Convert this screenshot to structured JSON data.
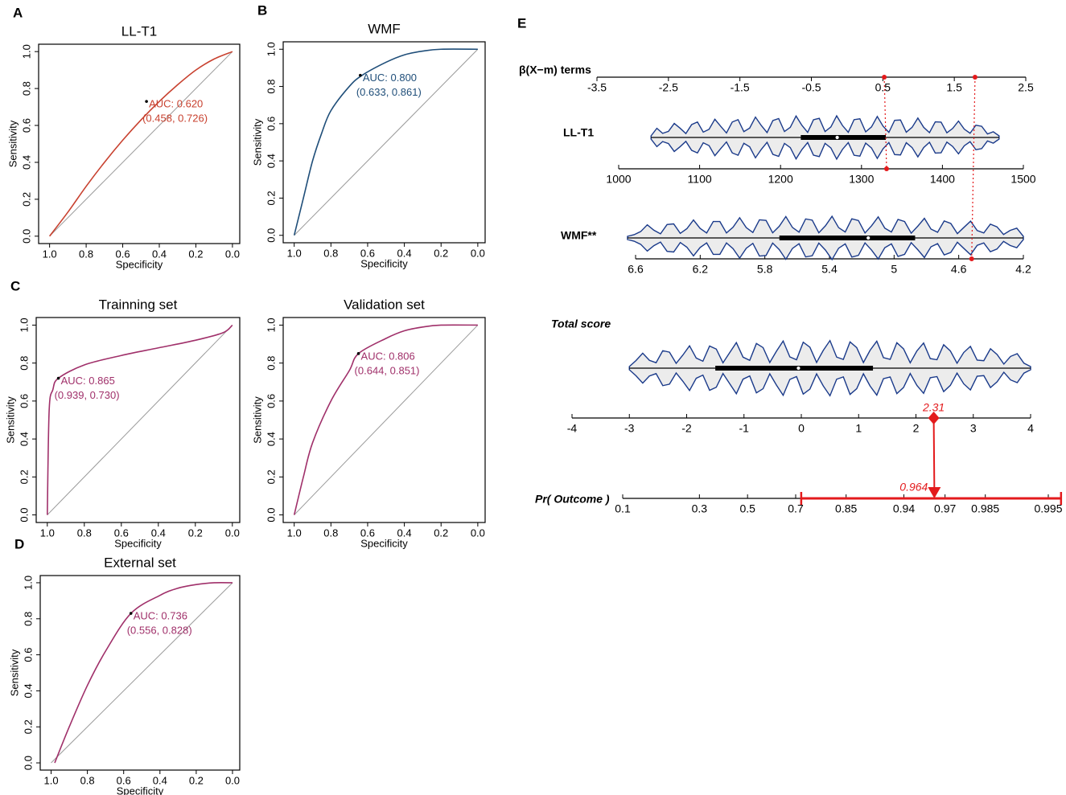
{
  "chart_data": [
    {
      "type": "roc",
      "panel": "A",
      "title": "LL-T1",
      "xlabel": "Specificity",
      "ylabel": "Sensitivity",
      "color": "#c8412f",
      "specificity": [
        1,
        0.9,
        0.8,
        0.7,
        0.6,
        0.5,
        0.4,
        0.3,
        0.2,
        0.1,
        0
      ],
      "sensitivity": [
        0,
        0.13,
        0.27,
        0.4,
        0.52,
        0.63,
        0.73,
        0.82,
        0.9,
        0.96,
        1
      ],
      "point": [
        0.47,
        0.73
      ],
      "auc_text": "AUC: 0.620",
      "ci_text": "(0.458, 0.726)",
      "xlim": [
        1.06,
        -0.04
      ],
      "ylim": [
        -0.04,
        1.04
      ],
      "xticks": [
        {
          "value": 1,
          "label": "1.0"
        },
        0.8,
        0.6,
        0.4,
        0.2,
        {
          "value": 0,
          "label": "0.0"
        }
      ],
      "yticks": [
        {
          "value": 0,
          "label": "0.0"
        },
        0.2,
        0.4,
        0.6,
        0.8,
        {
          "value": 1,
          "label": "1.0"
        }
      ]
    },
    {
      "type": "roc",
      "panel": "B",
      "title": "WMF",
      "xlabel": "Specificity",
      "ylabel": "Sensitivity",
      "color": "#1f4e79",
      "specificity": [
        1,
        0.95,
        0.9,
        0.85,
        0.8,
        0.7,
        0.63,
        0.5,
        0.4,
        0.3,
        0.2,
        0
      ],
      "sensitivity": [
        0,
        0.2,
        0.4,
        0.55,
        0.67,
        0.8,
        0.86,
        0.93,
        0.97,
        0.99,
        1,
        1
      ],
      "point": [
        0.64,
        0.86
      ],
      "auc_text": "AUC: 0.800",
      "ci_text": "(0.633, 0.861)",
      "xlim": [
        1.06,
        -0.04
      ],
      "ylim": [
        -0.04,
        1.04
      ],
      "xticks": [
        {
          "value": 1,
          "label": "1.0"
        },
        0.8,
        0.6,
        0.4,
        0.2,
        {
          "value": 0,
          "label": "0.0"
        }
      ],
      "yticks": [
        {
          "value": 0,
          "label": "0.0"
        },
        0.2,
        0.4,
        0.6,
        0.8,
        {
          "value": 1,
          "label": "1.0"
        }
      ]
    },
    {
      "type": "roc",
      "panel": "C",
      "title": "Trainning set",
      "xlabel": "Specificity",
      "ylabel": "Sensitivity",
      "color": "#a0306a",
      "specificity": [
        1,
        0.99,
        0.97,
        0.94,
        0.8,
        0.6,
        0.4,
        0.2,
        0.05,
        0
      ],
      "sensitivity": [
        0,
        0.55,
        0.66,
        0.72,
        0.79,
        0.84,
        0.88,
        0.92,
        0.96,
        1
      ],
      "point": [
        0.94,
        0.72
      ],
      "auc_text": "AUC: 0.865",
      "ci_text": "(0.939, 0.730)",
      "xlim": [
        1.06,
        -0.04
      ],
      "ylim": [
        -0.04,
        1.04
      ],
      "xticks": [
        {
          "value": 1,
          "label": "1.0"
        },
        0.8,
        0.6,
        0.4,
        0.2,
        {
          "value": 0,
          "label": "0.0"
        }
      ],
      "yticks": [
        {
          "value": 0,
          "label": "0.0"
        },
        0.2,
        0.4,
        0.6,
        0.8,
        {
          "value": 1,
          "label": "1.0"
        }
      ]
    },
    {
      "type": "roc",
      "title": "Validation set",
      "xlabel": "Specificity",
      "ylabel": "Sensitivity",
      "color": "#a0306a",
      "specificity": [
        1,
        0.95,
        0.9,
        0.8,
        0.7,
        0.65,
        0.5,
        0.4,
        0.3,
        0.2,
        0
      ],
      "sensitivity": [
        0,
        0.2,
        0.38,
        0.6,
        0.76,
        0.85,
        0.93,
        0.97,
        0.99,
        1,
        1
      ],
      "point": [
        0.65,
        0.85
      ],
      "auc_text": "AUC: 0.806",
      "ci_text": "(0.644, 0.851)",
      "xlim": [
        1.06,
        -0.04
      ],
      "ylim": [
        -0.04,
        1.04
      ],
      "xticks": [
        {
          "value": 1,
          "label": "1.0"
        },
        0.8,
        0.6,
        0.4,
        0.2,
        {
          "value": 0,
          "label": "0.0"
        }
      ],
      "yticks": [
        {
          "value": 0,
          "label": "0.0"
        },
        0.2,
        0.4,
        0.6,
        0.8,
        {
          "value": 1,
          "label": "1.0"
        }
      ]
    },
    {
      "type": "roc",
      "panel": "D",
      "title": "External set",
      "xlabel": "Specificity",
      "ylabel": "Sensitivity",
      "color": "#a0306a",
      "specificity": [
        0.98,
        0.9,
        0.8,
        0.7,
        0.56,
        0.4,
        0.3,
        0.2,
        0.1,
        0
      ],
      "sensitivity": [
        0,
        0.2,
        0.43,
        0.62,
        0.83,
        0.93,
        0.97,
        0.99,
        1,
        1
      ],
      "point": [
        0.56,
        0.83
      ],
      "auc_text": "AUC: 0.736",
      "ci_text": "(0.556, 0.828)",
      "xlim": [
        1.06,
        -0.04
      ],
      "ylim": [
        -0.04,
        1.04
      ],
      "xticks": [
        {
          "value": 1,
          "label": "1.0"
        },
        0.8,
        0.6,
        0.4,
        0.2,
        {
          "value": 0,
          "label": "0.0"
        }
      ],
      "yticks": [
        {
          "value": 0,
          "label": "0.0"
        },
        0.2,
        0.4,
        0.6,
        0.8,
        {
          "value": 1,
          "label": "1.0"
        }
      ]
    },
    {
      "type": "nomogram",
      "panel": "E",
      "color": "#e31a1c",
      "violin_color": "#1a3a8a",
      "axes": [
        {
          "label": "β(X−m) terms",
          "lim": [
            -3.5,
            2.5
          ],
          "ticks": [
            -3.5,
            -2.5,
            -1.5,
            -0.5,
            0.5,
            1.5,
            2.5
          ],
          "points": [
            0.52,
            1.79
          ]
        },
        {
          "label": "LL-T1",
          "lim": [
            1000,
            1500
          ],
          "ticks": [
            1000,
            1100,
            1200,
            1300,
            1400,
            1500
          ],
          "points": [
            1331
          ],
          "box": {
            "min": 1040,
            "q1": 1225,
            "median": 1270,
            "q3": 1330,
            "max": 1470
          }
        },
        {
          "label": "WMF**",
          "lim": [
            6.6,
            4.2
          ],
          "ticks": [
            6.6,
            6.2,
            5.8,
            5.4,
            5,
            4.6,
            4.2
          ],
          "points": [
            4.52
          ],
          "box": {
            "min": 6.65,
            "q1": 5.71,
            "median": 5.16,
            "q3": 4.87,
            "max": 4.2
          }
        },
        {
          "label": "Total score",
          "lim": [
            -4,
            4
          ],
          "ticks": [
            -4,
            -3,
            -2,
            -1,
            0,
            1,
            2,
            3,
            4
          ],
          "points": [
            2.31
          ],
          "box": {
            "min": -3,
            "q1": -1.5,
            "median": -0.05,
            "q3": 1.25,
            "max": 4
          }
        },
        {
          "label": "Pr( Outcome )",
          "scale": "logit",
          "lim": [
            0.1,
            0.995
          ],
          "ticks": [
            0.1,
            0.3,
            0.5,
            0.7,
            0.85,
            0.94,
            0.97,
            0.985,
            0.995
          ],
          "points": [
            0.964
          ],
          "interval": [
            0.72,
            0.996
          ]
        }
      ]
    }
  ]
}
